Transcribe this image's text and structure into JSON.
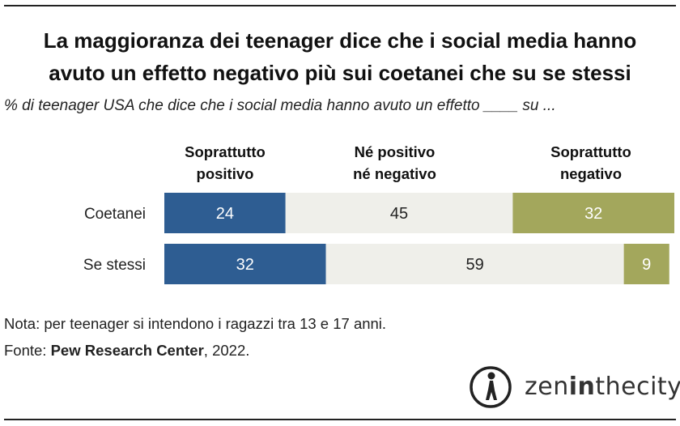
{
  "title_line1": "La maggioranza dei teenager dice che i social media hanno",
  "title_line2": "avuto un effetto negativo più sui coetanei che su se stessi",
  "subtitle": "% di teenager USA che dice che i social media hanno avuto un effetto ____ su ...",
  "columns": {
    "positive": [
      "Soprattutto",
      "positivo"
    ],
    "neutral": [
      "Né positivo",
      "né negativo"
    ],
    "negative": [
      "Soprattutto",
      "negativo"
    ]
  },
  "chart_data": {
    "type": "bar",
    "orientation": "horizontal-stacked",
    "categories": [
      "Coetanei",
      "Se stessi"
    ],
    "series": [
      {
        "name": "Soprattutto positivo",
        "color": "#2e5d92",
        "values": [
          24,
          32
        ]
      },
      {
        "name": "Né positivo né negativo",
        "color": "#efefea",
        "values": [
          45,
          59
        ]
      },
      {
        "name": "Soprattutto negativo",
        "color": "#a3a75c",
        "values": [
          32,
          9
        ]
      }
    ],
    "xlim": [
      0,
      101
    ]
  },
  "note_line": "Nota: per teenager si intendono i ragazzi tra 13 e 17 anni.",
  "source_prefix": "Fonte: ",
  "source_name": "Pew Research Center",
  "source_suffix": ", 2022.",
  "logo": {
    "text_a": "zen",
    "text_b": "in",
    "text_c": "thecity",
    "icon": "walking-person-icon"
  }
}
